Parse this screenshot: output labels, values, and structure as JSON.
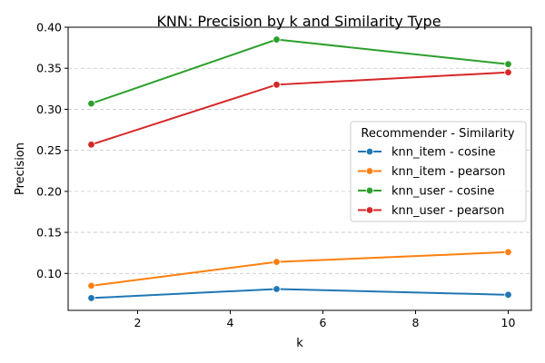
{
  "chart_data": {
    "type": "line",
    "title": "KNN: Precision by k and Similarity Type",
    "xlabel": "k",
    "ylabel": "Precision",
    "x": [
      1,
      5,
      10
    ],
    "xlim": [
      0.5,
      10.5
    ],
    "ylim": [
      0.055,
      0.4
    ],
    "xticks": [
      "2",
      "4",
      "6",
      "8",
      "10"
    ],
    "yticks": [
      "0.10",
      "0.15",
      "0.20",
      "0.25",
      "0.30",
      "0.35",
      "0.40"
    ],
    "grid": "y-dashed",
    "legend": {
      "title": "Recommender - Similarity",
      "placement": "center-right"
    },
    "series": [
      {
        "name": "knn_item - cosine",
        "color": "#1f77b4",
        "values": [
          0.07,
          0.081,
          0.074
        ]
      },
      {
        "name": "knn_item - pearson",
        "color": "#ff7f0e",
        "values": [
          0.085,
          0.114,
          0.126
        ]
      },
      {
        "name": "knn_user - cosine",
        "color": "#2ca02c",
        "values": [
          0.307,
          0.385,
          0.355
        ]
      },
      {
        "name": "knn_user - pearson",
        "color": "#d62728",
        "values": [
          0.257,
          0.33,
          0.345
        ]
      }
    ]
  }
}
